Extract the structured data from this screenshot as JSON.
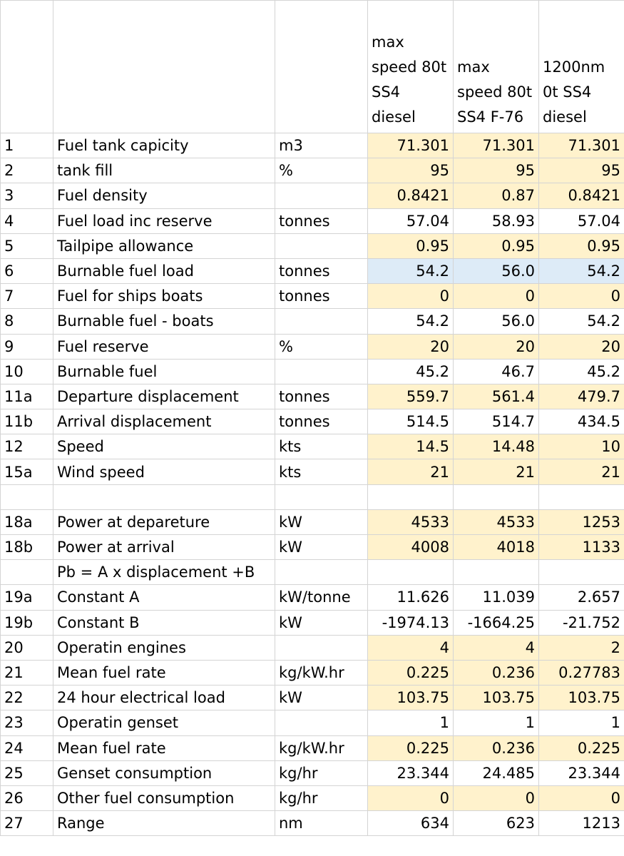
{
  "columns": [
    {
      "lines": [
        "max",
        "speed 80t",
        "SS4",
        "diesel"
      ]
    },
    {
      "lines": [
        "max",
        "speed 80t",
        "SS4 F-76"
      ]
    },
    {
      "lines": [
        "1200nm",
        "0t SS4",
        "diesel"
      ]
    }
  ],
  "rows": [
    {
      "num": "1",
      "label": "Fuel tank capicity",
      "unit": "m3",
      "values": [
        "71.301",
        "71.301",
        "71.301"
      ],
      "fill": "#fff2cc"
    },
    {
      "num": "2",
      "label": "tank fill",
      "unit": "%",
      "values": [
        "95",
        "95",
        "95"
      ],
      "fill": "#fff2cc"
    },
    {
      "num": "3",
      "label": "Fuel density",
      "unit": "",
      "values": [
        "0.8421",
        "0.87",
        "0.8421"
      ],
      "fill": "#fff2cc"
    },
    {
      "num": "4",
      "label": "Fuel load inc reserve",
      "unit": "tonnes",
      "values": [
        "57.04",
        "58.93",
        "57.04"
      ],
      "fill": ""
    },
    {
      "num": "5",
      "label": "Tailpipe allowance",
      "unit": "",
      "values": [
        "0.95",
        "0.95",
        "0.95"
      ],
      "fill": "#fff2cc"
    },
    {
      "num": "6",
      "label": "Burnable fuel load",
      "unit": "tonnes",
      "values": [
        "54.2",
        "56.0",
        "54.2"
      ],
      "fill": "#ddebf7"
    },
    {
      "num": "7",
      "label": "Fuel for ships boats",
      "unit": "tonnes",
      "values": [
        "0",
        "0",
        "0"
      ],
      "fill": "#fff2cc"
    },
    {
      "num": "8",
      "label": "Burnable fuel - boats",
      "unit": "",
      "values": [
        "54.2",
        "56.0",
        "54.2"
      ],
      "fill": ""
    },
    {
      "num": "9",
      "label": "Fuel reserve",
      "unit": "%",
      "values": [
        "20",
        "20",
        "20"
      ],
      "fill": "#fff2cc"
    },
    {
      "num": "10",
      "label": "Burnable fuel",
      "unit": "",
      "values": [
        "45.2",
        "46.7",
        "45.2"
      ],
      "fill": ""
    },
    {
      "num": "11a",
      "label": "Departure displacement",
      "unit": "tonnes",
      "values": [
        "559.7",
        "561.4",
        "479.7"
      ],
      "fill": "#fff2cc"
    },
    {
      "num": "11b",
      "label": "Arrival displacement",
      "unit": "tonnes",
      "values": [
        "514.5",
        "514.7",
        "434.5"
      ],
      "fill": ""
    },
    {
      "num": "12",
      "label": "Speed",
      "unit": "kts",
      "values": [
        "14.5",
        "14.48",
        "10"
      ],
      "fill": "#fff2cc"
    },
    {
      "num": "15a",
      "label": "Wind speed",
      "unit": "kts",
      "values": [
        "21",
        "21",
        "21"
      ],
      "fill": "#fff2cc"
    },
    {
      "num": "",
      "label": "",
      "unit": "",
      "values": [
        "",
        "",
        ""
      ],
      "fill": ""
    },
    {
      "num": "18a",
      "label": "Power at depareture",
      "unit": "kW",
      "values": [
        "4533",
        "4533",
        "1253"
      ],
      "fill": "#fff2cc"
    },
    {
      "num": "18b",
      "label": "Power at arrival",
      "unit": "kW",
      "values": [
        "4008",
        "4018",
        "1133"
      ],
      "fill": "#fff2cc"
    },
    {
      "num": "",
      "label": "Pb =  A x displacement +B",
      "unit": "",
      "values": [
        "",
        "",
        ""
      ],
      "fill": ""
    },
    {
      "num": "19a",
      "label": "Constant A",
      "unit": "kW/tonne",
      "values": [
        "11.626",
        "11.039",
        "2.657"
      ],
      "fill": ""
    },
    {
      "num": "19b",
      "label": "Constant B",
      "unit": "kW",
      "values": [
        "-1974.13",
        "-1664.25",
        "-21.752"
      ],
      "fill": ""
    },
    {
      "num": "20",
      "label": "Operatin engines",
      "unit": "",
      "values": [
        "4",
        "4",
        "2"
      ],
      "fill": "#fff2cc"
    },
    {
      "num": "21",
      "label": "Mean fuel rate",
      "unit": "kg/kW.hr",
      "values": [
        "0.225",
        "0.236",
        "0.27783"
      ],
      "fill": "#fff2cc"
    },
    {
      "num": "22",
      "label": "24 hour electrical load",
      "unit": "kW",
      "values": [
        "103.75",
        "103.75",
        "103.75"
      ],
      "fill": "#fff2cc"
    },
    {
      "num": "23",
      "label": "Operatin genset",
      "unit": "",
      "values": [
        "1",
        "1",
        "1"
      ],
      "fill": ""
    },
    {
      "num": "24",
      "label": "Mean fuel rate",
      "unit": "kg/kW.hr",
      "values": [
        "0.225",
        "0.236",
        "0.225"
      ],
      "fill": "#fff2cc"
    },
    {
      "num": "25",
      "label": "Genset consumption",
      "unit": "kg/hr",
      "values": [
        "23.344",
        "24.485",
        "23.344"
      ],
      "fill": ""
    },
    {
      "num": "26",
      "label": "Other fuel consumption",
      "unit": "kg/hr",
      "values": [
        "0",
        "0",
        "0"
      ],
      "fill": "#fff2cc"
    },
    {
      "num": "27",
      "label": "Range",
      "unit": "nm",
      "values": [
        "634",
        "623",
        "1213"
      ],
      "fill": ""
    }
  ]
}
